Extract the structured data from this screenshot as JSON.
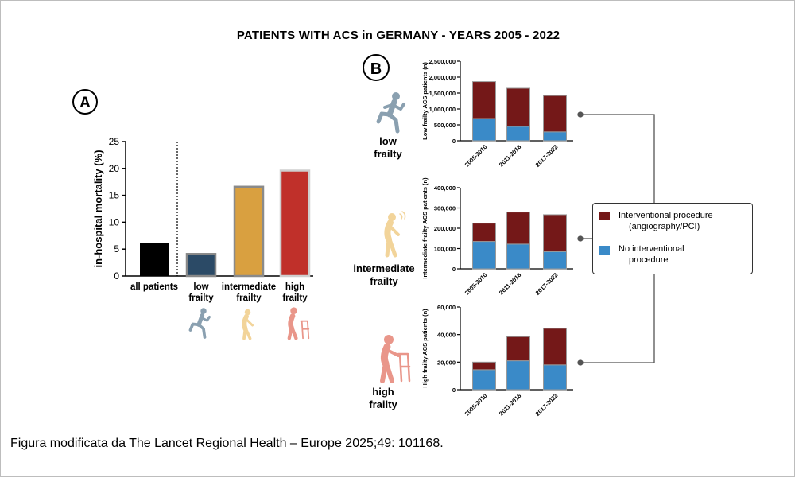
{
  "title": "PATIENTS WITH ACS in GERMANY - YEARS 2005 - 2022",
  "caption": "Figura modificata da The Lancet Regional Health – Europe 2025;49: 101168.",
  "panel_a_letter": "A",
  "panel_b_letter": "B",
  "colors": {
    "interventional": "#741818",
    "no_interventional": "#3a8ac8",
    "all_patients": "#000000",
    "low_frailty": "#2b4a66",
    "intermediate_frailty": "#d9a040",
    "high_frailty": "#c0302a",
    "low_icon": "#8aa0b0",
    "intermediate_icon": "#f2d49a",
    "high_icon": "#e9968a"
  },
  "groups": {
    "low": [
      "low",
      "frailty"
    ],
    "intermediate": [
      "intermediate",
      "frailty"
    ],
    "high": [
      "high",
      "frailty"
    ]
  },
  "legend": {
    "interventional": [
      "Interventional procedure",
      "(angiography/PCI)"
    ],
    "no_interventional": [
      "No interventional",
      "procedure"
    ]
  },
  "chart_data": [
    {
      "type": "bar",
      "panel": "A",
      "categories": [
        "all patients",
        "low frailty",
        "intermediate frailty",
        "high frailty"
      ],
      "category_lines": [
        [
          "all patients"
        ],
        [
          "low",
          "frailty"
        ],
        [
          "intermediate",
          "frailty"
        ],
        [
          "high",
          "frailty"
        ]
      ],
      "values": [
        6.1,
        4.1,
        16.6,
        19.6
      ],
      "ylabel": "in-hospital mortality (%)",
      "ylim": [
        0,
        25
      ],
      "yticks": [
        0,
        5,
        10,
        15,
        20,
        25
      ],
      "grid": false
    },
    {
      "type": "bar",
      "panel": "B",
      "subtype": "stacked",
      "categories": [
        "2005-2010",
        "2011-2016",
        "2017-2022"
      ],
      "ylabel": "Low frailty ACS patients (n)",
      "ylim": [
        0,
        2500000
      ],
      "yticks": [
        0,
        500000,
        1000000,
        1500000,
        2000000,
        2500000
      ],
      "ytick_labels": [
        "0",
        "500,000",
        "1,000,000",
        "1,500,000",
        "2,000,000",
        "2,500,000"
      ],
      "series": [
        {
          "name": "No interventional procedure",
          "values": [
            700000,
            450000,
            280000
          ]
        },
        {
          "name": "Interventional procedure (angiography/PCI)",
          "values": [
            1160000,
            1200000,
            1140000
          ]
        }
      ]
    },
    {
      "type": "bar",
      "panel": "B",
      "subtype": "stacked",
      "categories": [
        "2005-2010",
        "2011-2016",
        "2017-2022"
      ],
      "ylabel": "Intermediate frailty ACS patients (n)",
      "ylim": [
        0,
        400000
      ],
      "yticks": [
        0,
        100000,
        200000,
        300000,
        400000
      ],
      "ytick_labels": [
        "0",
        "100,000",
        "200,000",
        "300,000",
        "400,000"
      ],
      "series": [
        {
          "name": "No interventional procedure",
          "values": [
            135000,
            122000,
            85000
          ]
        },
        {
          "name": "Interventional procedure (angiography/PCI)",
          "values": [
            90000,
            158000,
            182000
          ]
        }
      ]
    },
    {
      "type": "bar",
      "panel": "B",
      "subtype": "stacked",
      "categories": [
        "2005-2010",
        "2011-2016",
        "2017-2022"
      ],
      "ylabel": "High frailty ACS patients (n)",
      "ylim": [
        0,
        60000
      ],
      "yticks": [
        0,
        20000,
        40000,
        60000
      ],
      "ytick_labels": [
        "0",
        "20,000",
        "40,000",
        "60,000"
      ],
      "series": [
        {
          "name": "No interventional procedure",
          "values": [
            14500,
            21000,
            18000
          ]
        },
        {
          "name": "Interventional procedure (angiography/PCI)",
          "values": [
            5500,
            17500,
            26500
          ]
        }
      ]
    }
  ]
}
